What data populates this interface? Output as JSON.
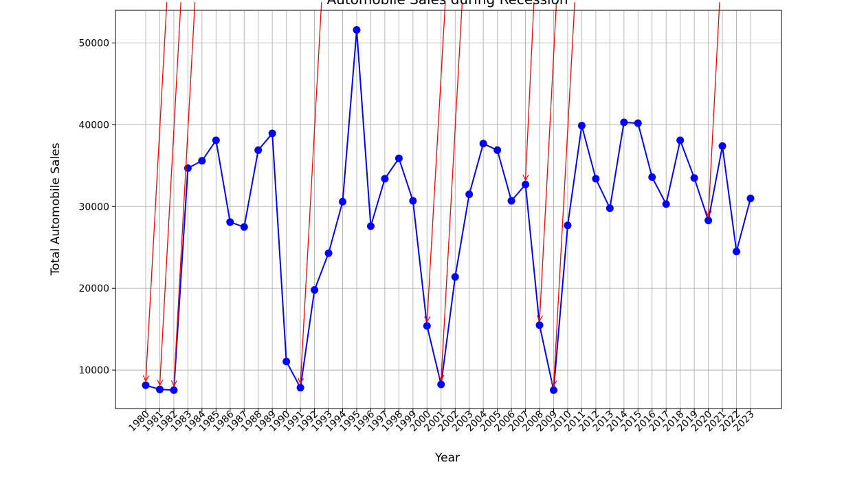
{
  "chart_data": {
    "type": "line",
    "title": "Automobile Sales during Recession",
    "xlabel": "Year",
    "ylabel": "Total Automobile Sales",
    "ylim": [
      5300,
      54000
    ],
    "yticks": [
      10000,
      20000,
      30000,
      40000,
      50000
    ],
    "grid": true,
    "line_color": "#0000ff",
    "marker_color": "#0000ff",
    "annotation_color": "#ff0000",
    "x": [
      "1980",
      "1981",
      "1982",
      "1983",
      "1984",
      "1985",
      "1986",
      "1987",
      "1988",
      "1989",
      "1990",
      "1991",
      "1992",
      "1993",
      "1994",
      "1995",
      "1996",
      "1997",
      "1998",
      "1999",
      "2000",
      "2001",
      "2002",
      "2003",
      "2004",
      "2005",
      "2006",
      "2007",
      "2008",
      "2009",
      "2010",
      "2011",
      "2012",
      "2013",
      "2014",
      "2015",
      "2016",
      "2017",
      "2018",
      "2019",
      "2020",
      "2021",
      "2022",
      "2023"
    ],
    "series": [
      {
        "values": [
          8150,
          7640,
          7550,
          34700,
          35600,
          38100,
          28100,
          27500,
          36900,
          38950,
          11050,
          7850,
          19800,
          24300,
          30600,
          51600,
          27600,
          33400,
          35900,
          30700,
          15400,
          8250,
          21400,
          31500,
          37700,
          36900,
          30700,
          32700,
          15500,
          7550,
          27700,
          39900,
          33400,
          29800,
          40300,
          40200,
          33600,
          30300,
          38100,
          33500,
          28300,
          37400,
          24500,
          31000
        ]
      }
    ],
    "annotations": [
      {
        "target_year": "1980",
        "text_year": "1981.5",
        "text_value": 55000
      },
      {
        "target_year": "1981",
        "text_year": "1982.5",
        "text_value": 55000
      },
      {
        "target_year": "1982",
        "text_year": "1983.5",
        "text_value": 55000
      },
      {
        "target_year": "1991",
        "text_year": "1992.5",
        "text_value": 55000
      },
      {
        "target_year": "2000",
        "text_year": "2001.3",
        "text_value": 55000
      },
      {
        "target_year": "2001",
        "text_year": "2002.5",
        "text_value": 55000
      },
      {
        "target_year": "2007",
        "text_year": "2007.6",
        "text_value": 55000
      },
      {
        "target_year": "2008",
        "text_year": "2009.2",
        "text_value": 55000
      },
      {
        "target_year": "2009",
        "text_year": "2010.5",
        "text_value": 55000
      },
      {
        "target_year": "2020",
        "text_year": "2020.8",
        "text_value": 55000
      }
    ]
  }
}
